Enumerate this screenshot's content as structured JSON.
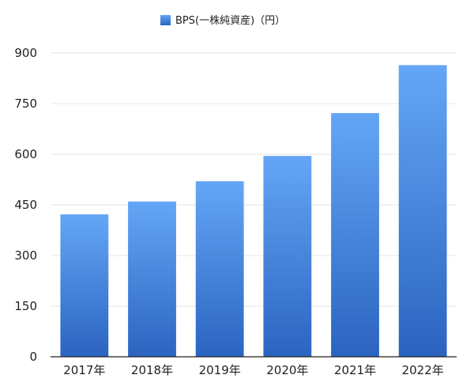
{
  "chart_data": {
    "type": "bar",
    "categories": [
      "2017年",
      "2018年",
      "2019年",
      "2020年",
      "2021年",
      "2022年"
    ],
    "series": [
      {
        "name": "BPS(一株純資産)（円）",
        "values": [
          422,
          460,
          520,
          595,
          722,
          864
        ]
      }
    ],
    "title": "",
    "xlabel": "",
    "ylabel": "",
    "ylim": [
      0,
      900
    ],
    "yticks": [
      0,
      150,
      300,
      450,
      600,
      750,
      900
    ],
    "grid": true,
    "legend": "top-center",
    "colors": {
      "bar_top": "#64a6f6",
      "bar_bottom": "#2b64c0",
      "grid": "#e6e6e6",
      "axis": "#222222"
    }
  }
}
